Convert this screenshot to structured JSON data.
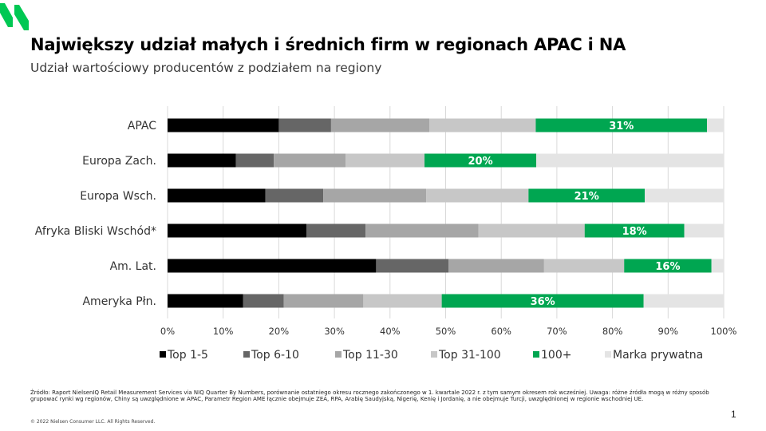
{
  "header": {
    "title": "Największy udział małych i średnich firm w regionach APAC i NA",
    "subtitle": "Udział wartościowy producentów z podziałem na regiony"
  },
  "footer": {
    "source": "Źródło: Raport NielsenIQ Retail Measurement Services via NIQ Quarter By Numbers, porównanie ostatniego okresu rocznego zakończonego w 1. kwartale 2022 r. z tym samym okresem rok wcześniej. Uwaga: różne źródła mogą w różny sposób grupować rynki wg regionów, Chiny są uwzględnione w APAC, Parametr Region AME łącznie obejmuje ZEA, RPA, Arabię Saudyjską, Nigerię, Kenię i Jordanię, a nie obejmuje Turcji, uwzględnionej w regionie wschodniej UE.",
    "copyright": "© 2022 Nielsen Consumer LLC. All Rights Reserved.",
    "page_number": "1"
  },
  "brand": {
    "accent": "#00a651"
  },
  "chart_data": {
    "type": "bar",
    "orientation": "horizontal",
    "stacked": true,
    "categories": [
      "APAC",
      "Europa Zach.",
      "Europa Wsch.",
      "Afryka Bliski Wschód*",
      "Am. Lat.",
      "Ameryka Płn."
    ],
    "series": [
      {
        "name": "Top 1-5",
        "color": "#000000",
        "values": [
          20,
          12.3,
          17.6,
          25,
          37.5,
          13.6
        ]
      },
      {
        "name": "Top 6-10",
        "color": "#666666",
        "values": [
          9.4,
          6.8,
          10.4,
          10.6,
          13,
          7.3
        ]
      },
      {
        "name": "Top 11-30",
        "color": "#a6a6a6",
        "values": [
          17.7,
          12.9,
          18.5,
          20.3,
          17.2,
          14.3
        ]
      },
      {
        "name": "Top 31-100",
        "color": "#c7c7c7",
        "values": [
          19.1,
          14.2,
          18.4,
          19.1,
          14.4,
          14.1
        ]
      },
      {
        "name": "100+",
        "color": "#00a651",
        "values": [
          30.8,
          20.1,
          20.9,
          17.9,
          15.7,
          36.3
        ],
        "labels": [
          "31%",
          "20%",
          "21%",
          "18%",
          "16%",
          "36%"
        ]
      },
      {
        "name": "Marka prywatna",
        "color": "#e4e4e4",
        "values": [
          3,
          33.7,
          14.2,
          7.1,
          2.2,
          14.4
        ]
      }
    ],
    "xlim": [
      0,
      100
    ],
    "x_ticks": [
      "0%",
      "10%",
      "20%",
      "30%",
      "40%",
      "50%",
      "60%",
      "70%",
      "80%",
      "90%",
      "100%"
    ],
    "grid": true,
    "legend_position": "bottom"
  }
}
